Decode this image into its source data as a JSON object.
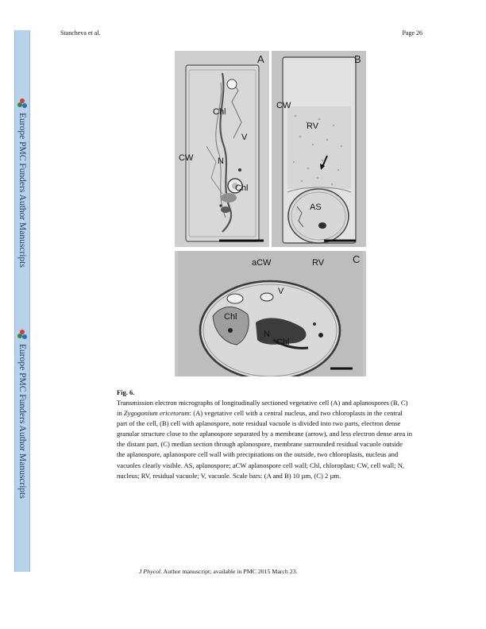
{
  "header": {
    "authors": "Stancheva et al.",
    "page": "Page 26"
  },
  "sidebar": {
    "label_top": "Europe PMC Funders Author Manuscripts",
    "label_bottom": "Europe PMC Funders Author Manuscripts",
    "logo_colors": [
      "#d93a2b",
      "#2a8a3e",
      "#2f6fb5"
    ]
  },
  "figure": {
    "panel_a": {
      "letter": "A",
      "labels": {
        "chl_top": "Chl",
        "v": "V",
        "cw": "CW",
        "n": "N",
        "chl_bottom": "Chl"
      }
    },
    "panel_b": {
      "letter": "B",
      "labels": {
        "cw": "CW",
        "rv": "RV",
        "as": "AS"
      }
    },
    "panel_c": {
      "letter": "C",
      "labels": {
        "acw": "aCW",
        "rv": "RV",
        "v": "V",
        "chl_left": "Chl",
        "n": "N",
        "chl_right": "Chl"
      }
    }
  },
  "caption": {
    "title": "Fig. 6.",
    "part1": "Transmission electron micrographs of longitudinally sectioned vegetative cell (A) and aplanospores (B, C) in ",
    "species": "Zygogonium ericetorum",
    "part2": ": (A) vegetative cell with a central nucleus, and two chloroplasts in the central part of the cell, (B) cell with aplanospore, note residual vacuole is divided into two parts, electron dense granular structure close to the aplanospore separated by a membrane (arrow), and less electron dense area in the distant part, (C) median section through aplanospore, membrane surrounded residual vacuole outside the aplanospore, aplanospore cell wall with precipitations on the outside, two chloroplasts, nucleus and vacuoles clearly visible. AS, aplanospore; aCW aplanospore cell wall; Chl, chloroplast; CW, cell wall; N, nucleus; RV, residual vacuole; V, vacuole. Scale bars: (A and B) 10 µm, (C) 2 µm."
  },
  "footer": {
    "journal": "J Phycol",
    "rest": ". Author manuscript; available in PMC 2015 March 23."
  }
}
